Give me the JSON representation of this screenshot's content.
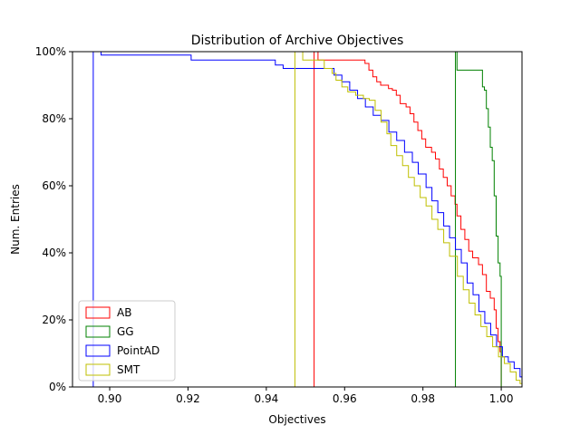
{
  "chart_data": {
    "type": "step",
    "title": "Distribution of Archive Objectives",
    "xlabel": "Objectives",
    "ylabel": "Num. Entries",
    "xlim": [
      0.8905,
      1.0053
    ],
    "ylim": [
      0,
      1.0
    ],
    "x_ticks": [
      0.9,
      0.92,
      0.94,
      0.96,
      0.98,
      1.0
    ],
    "x_tick_labels": [
      "0.90",
      "0.92",
      "0.94",
      "0.96",
      "0.98",
      "1.00"
    ],
    "y_ticks": [
      0,
      0.2,
      0.4,
      0.6,
      0.8,
      1.0
    ],
    "y_tick_labels": [
      "0%",
      "20%",
      "40%",
      "60%",
      "80%",
      "100%"
    ],
    "grid": false,
    "legend_position": "lower-left",
    "series": [
      {
        "name": "AB",
        "color": "#ff0000",
        "steps": [
          [
            0.9522,
            1.0
          ],
          [
            0.9532,
            0.975
          ],
          [
            0.9652,
            0.965
          ],
          [
            0.9662,
            0.945
          ],
          [
            0.9672,
            0.925
          ],
          [
            0.9682,
            0.91
          ],
          [
            0.9692,
            0.9
          ],
          [
            0.9712,
            0.89
          ],
          [
            0.9722,
            0.885
          ],
          [
            0.9732,
            0.87
          ],
          [
            0.9742,
            0.845
          ],
          [
            0.9757,
            0.835
          ],
          [
            0.9767,
            0.815
          ],
          [
            0.9777,
            0.79
          ],
          [
            0.9787,
            0.765
          ],
          [
            0.9797,
            0.74
          ],
          [
            0.9807,
            0.715
          ],
          [
            0.9822,
            0.7
          ],
          [
            0.9832,
            0.68
          ],
          [
            0.9842,
            0.65
          ],
          [
            0.9852,
            0.625
          ],
          [
            0.9862,
            0.6
          ],
          [
            0.9872,
            0.57
          ],
          [
            0.9882,
            0.545
          ],
          [
            0.9887,
            0.51
          ],
          [
            0.9897,
            0.47
          ],
          [
            0.9907,
            0.44
          ],
          [
            0.9917,
            0.405
          ],
          [
            0.9927,
            0.385
          ],
          [
            0.9942,
            0.365
          ],
          [
            0.9952,
            0.335
          ],
          [
            0.9962,
            0.285
          ],
          [
            0.9972,
            0.265
          ],
          [
            0.9982,
            0.23
          ],
          [
            0.9987,
            0.175
          ],
          [
            0.9992,
            0.135
          ],
          [
            0.9997,
            0.105
          ],
          [
            1.0,
            0.0
          ]
        ]
      },
      {
        "name": "GG",
        "color": "#008000",
        "steps": [
          [
            0.9883,
            1.0
          ],
          [
            0.9887,
            0.945
          ],
          [
            0.9952,
            0.895
          ],
          [
            0.9957,
            0.885
          ],
          [
            0.9962,
            0.83
          ],
          [
            0.9967,
            0.775
          ],
          [
            0.9972,
            0.715
          ],
          [
            0.9977,
            0.675
          ],
          [
            0.9982,
            0.57
          ],
          [
            0.9987,
            0.45
          ],
          [
            0.9992,
            0.37
          ],
          [
            0.9997,
            0.33
          ],
          [
            1.0,
            0.0
          ]
        ]
      },
      {
        "name": "PointAD",
        "color": "#0000ff",
        "steps": [
          [
            0.8958,
            1.0
          ],
          [
            0.8978,
            0.99
          ],
          [
            0.9208,
            0.975
          ],
          [
            0.9423,
            0.96
          ],
          [
            0.9443,
            0.95
          ],
          [
            0.9573,
            0.93
          ],
          [
            0.9593,
            0.91
          ],
          [
            0.9613,
            0.885
          ],
          [
            0.9633,
            0.86
          ],
          [
            0.9653,
            0.835
          ],
          [
            0.9673,
            0.81
          ],
          [
            0.9693,
            0.795
          ],
          [
            0.9713,
            0.76
          ],
          [
            0.9733,
            0.735
          ],
          [
            0.9753,
            0.7
          ],
          [
            0.9773,
            0.67
          ],
          [
            0.9788,
            0.635
          ],
          [
            0.9808,
            0.595
          ],
          [
            0.9823,
            0.555
          ],
          [
            0.9838,
            0.52
          ],
          [
            0.9853,
            0.48
          ],
          [
            0.9868,
            0.445
          ],
          [
            0.9883,
            0.41
          ],
          [
            0.9898,
            0.37
          ],
          [
            0.9913,
            0.31
          ],
          [
            0.9928,
            0.275
          ],
          [
            0.9943,
            0.225
          ],
          [
            0.9958,
            0.19
          ],
          [
            0.9973,
            0.155
          ],
          [
            0.9988,
            0.12
          ],
          [
            1.0003,
            0.09
          ],
          [
            1.0018,
            0.075
          ],
          [
            1.0033,
            0.055
          ],
          [
            1.0048,
            0.03
          ],
          [
            1.0053,
            0.025
          ]
        ]
      },
      {
        "name": "SMT",
        "color": "#bfbf00",
        "steps": [
          [
            0.9473,
            1.0
          ],
          [
            0.9493,
            0.975
          ],
          [
            0.9548,
            0.95
          ],
          [
            0.9568,
            0.935
          ],
          [
            0.9578,
            0.915
          ],
          [
            0.9593,
            0.895
          ],
          [
            0.9608,
            0.88
          ],
          [
            0.9628,
            0.87
          ],
          [
            0.9648,
            0.86
          ],
          [
            0.9663,
            0.855
          ],
          [
            0.9678,
            0.825
          ],
          [
            0.9693,
            0.79
          ],
          [
            0.9708,
            0.755
          ],
          [
            0.9718,
            0.72
          ],
          [
            0.9733,
            0.69
          ],
          [
            0.9748,
            0.66
          ],
          [
            0.9763,
            0.625
          ],
          [
            0.9778,
            0.6
          ],
          [
            0.9793,
            0.565
          ],
          [
            0.9808,
            0.54
          ],
          [
            0.9823,
            0.5
          ],
          [
            0.9838,
            0.47
          ],
          [
            0.9853,
            0.43
          ],
          [
            0.9868,
            0.39
          ],
          [
            0.9888,
            0.33
          ],
          [
            0.9903,
            0.29
          ],
          [
            0.9918,
            0.25
          ],
          [
            0.9933,
            0.215
          ],
          [
            0.9948,
            0.18
          ],
          [
            0.9963,
            0.15
          ],
          [
            0.9978,
            0.12
          ],
          [
            0.9993,
            0.09
          ],
          [
            1.0008,
            0.07
          ],
          [
            1.0023,
            0.045
          ],
          [
            1.0038,
            0.02
          ],
          [
            1.0048,
            0.01
          ],
          [
            1.0053,
            0.0
          ]
        ]
      }
    ]
  }
}
